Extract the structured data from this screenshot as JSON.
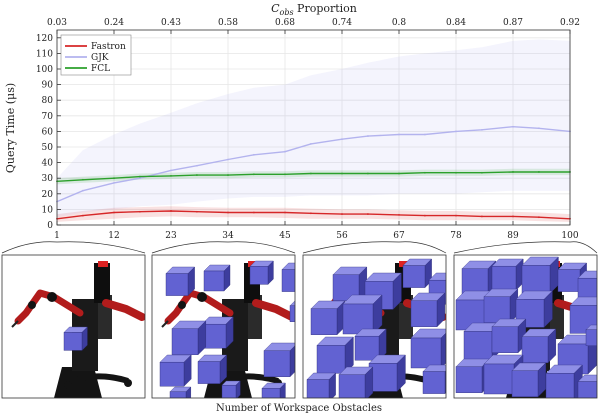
{
  "chart_data": {
    "type": "line",
    "title": "",
    "xlabel": "Number of Workspace Obstacles",
    "ylabel": "Query Time (μs)",
    "x2label": "C_obs Proportion",
    "x2label_main": "C",
    "x2label_sub": "obs",
    "x2label_rest": " Proportion",
    "xlim": [
      1,
      100
    ],
    "ylim": [
      0,
      125
    ],
    "xticks": [
      1,
      12,
      23,
      34,
      45,
      56,
      67,
      78,
      89,
      100
    ],
    "yticks": [
      0,
      10,
      20,
      30,
      40,
      50,
      60,
      70,
      80,
      90,
      100,
      110,
      120
    ],
    "x2ticks": [
      "0.03",
      "0.24",
      "0.43",
      "0.58",
      "0.68",
      "0.74",
      "0.8",
      "0.84",
      "0.87",
      "0.92"
    ],
    "grid": true,
    "legend_position": "top-left",
    "x": [
      1,
      6,
      12,
      17,
      23,
      28,
      34,
      39,
      45,
      50,
      56,
      61,
      67,
      72,
      78,
      83,
      89,
      94,
      100
    ],
    "series": [
      {
        "name": "Fastron",
        "color": "#d62728",
        "values": [
          4,
          6,
          8,
          8.5,
          9,
          8.5,
          8,
          8,
          8,
          7.5,
          7,
          7,
          6.5,
          6,
          6,
          5.5,
          5.5,
          5,
          4
        ],
        "upper": [
          7,
          9,
          11,
          11.5,
          12,
          11.5,
          11,
          11,
          11,
          10.5,
          10,
          10,
          9.5,
          9,
          9,
          8.5,
          8.5,
          8,
          7
        ],
        "lower": [
          2,
          3,
          4,
          5,
          5.5,
          5,
          5,
          5,
          4.5,
          4,
          4,
          4,
          3.5,
          3,
          3,
          3,
          3,
          2.5,
          2
        ]
      },
      {
        "name": "GJK",
        "color": "#b3b3ee",
        "values": [
          15,
          22,
          27,
          30,
          35,
          38,
          42,
          45,
          47,
          52,
          55,
          57,
          58,
          58,
          60,
          61,
          63,
          62,
          60
        ],
        "upper": [
          30,
          48,
          58,
          65,
          72,
          78,
          84,
          88,
          90,
          96,
          100,
          104,
          108,
          110,
          112,
          114,
          118,
          119,
          118
        ],
        "lower": [
          5,
          8,
          10,
          12,
          13,
          15,
          17,
          18,
          18,
          19,
          19,
          19,
          20,
          20,
          20,
          21,
          22,
          22,
          22
        ]
      },
      {
        "name": "FCL",
        "color": "#2ca02c",
        "values": [
          28,
          29,
          30,
          31,
          31.5,
          32,
          32,
          32.5,
          32.5,
          33,
          33,
          33,
          33,
          33.5,
          33.5,
          33.5,
          34,
          34,
          34
        ],
        "upper": [
          30,
          31,
          32,
          33,
          33.5,
          34,
          34,
          34.5,
          34.5,
          35,
          35,
          35,
          35,
          35.5,
          35.5,
          35.5,
          36,
          36,
          36
        ],
        "lower": [
          26,
          27,
          28,
          29,
          29.5,
          30,
          30,
          30.5,
          30.5,
          31,
          31,
          31,
          31,
          31.5,
          31.5,
          31.5,
          32,
          32,
          32
        ]
      }
    ],
    "callouts": [
      1,
      34,
      67,
      100
    ],
    "panel_obstacles": [
      [
        [
          62,
          72,
          18
        ]
      ],
      [
        [
          14,
          12,
          22
        ],
        [
          52,
          10,
          20
        ],
        [
          98,
          6,
          18
        ],
        [
          130,
          8,
          22
        ],
        [
          50,
          62,
          24
        ],
        [
          20,
          66,
          26
        ],
        [
          8,
          100,
          24
        ],
        [
          46,
          100,
          22
        ],
        [
          112,
          88,
          26
        ],
        [
          138,
          46,
          16
        ],
        [
          110,
          128,
          18
        ],
        [
          18,
          132,
          16
        ],
        [
          70,
          126,
          14
        ]
      ],
      [
        [
          30,
          12,
          26
        ],
        [
          62,
          18,
          28
        ],
        [
          100,
          4,
          22
        ],
        [
          126,
          18,
          24
        ],
        [
          8,
          46,
          26
        ],
        [
          40,
          40,
          30
        ],
        [
          108,
          38,
          26
        ],
        [
          14,
          82,
          28
        ],
        [
          52,
          74,
          24
        ],
        [
          4,
          118,
          22
        ],
        [
          66,
          100,
          28
        ],
        [
          108,
          74,
          30
        ],
        [
          36,
          112,
          26
        ],
        [
          120,
          110,
          22
        ]
      ],
      [
        [
          8,
          6,
          26
        ],
        [
          38,
          4,
          24
        ],
        [
          68,
          2,
          28
        ],
        [
          104,
          8,
          22
        ],
        [
          124,
          16,
          24
        ],
        [
          2,
          36,
          30
        ],
        [
          30,
          34,
          26
        ],
        [
          62,
          36,
          28
        ],
        [
          116,
          42,
          28
        ],
        [
          10,
          68,
          28
        ],
        [
          38,
          64,
          26
        ],
        [
          68,
          74,
          26
        ],
        [
          104,
          80,
          30
        ],
        [
          2,
          104,
          26
        ],
        [
          30,
          100,
          30
        ],
        [
          58,
          108,
          26
        ],
        [
          92,
          110,
          28
        ],
        [
          124,
          120,
          22
        ],
        [
          132,
          70,
          16
        ]
      ]
    ]
  }
}
